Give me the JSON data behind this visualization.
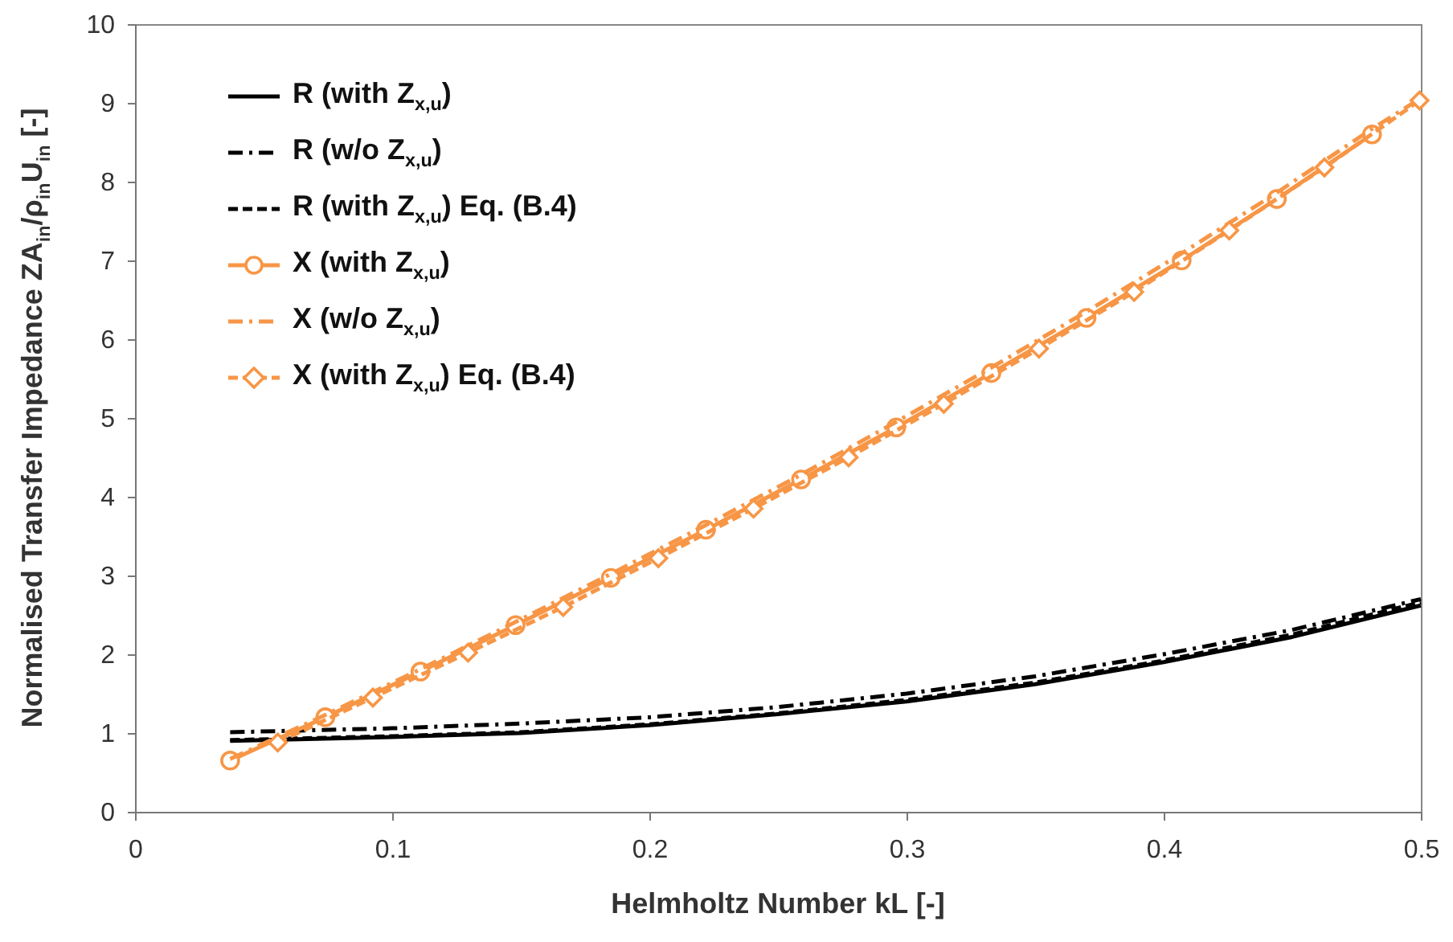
{
  "chart_data": {
    "type": "line",
    "xlabel": "Helmholtz Number kL [-]",
    "ylabel": "Normalised Transfer Impedance ZA$_{in}$/ρ$_{in}$U$_{in}$ [-]",
    "xlim": [
      0,
      0.5
    ],
    "xticks": [
      0,
      0.1,
      0.2,
      0.3,
      0.4,
      0.5
    ],
    "ylim": [
      0,
      10
    ],
    "yticks": [
      0,
      1,
      2,
      3,
      4,
      5,
      6,
      7,
      8,
      9,
      10
    ],
    "grid": false,
    "legend": "top left",
    "series": [
      {
        "name": "R (with Z$_{x,u}$)",
        "color": "#000000",
        "line_style": "solid",
        "marker": "none",
        "x": [
          0.037,
          0.1,
          0.15,
          0.2,
          0.25,
          0.3,
          0.35,
          0.4,
          0.45,
          0.5
        ],
        "values": [
          0.9,
          0.95,
          1.0,
          1.1,
          1.24,
          1.4,
          1.62,
          1.9,
          2.22,
          2.62
        ]
      },
      {
        "name": "R (w/o Z$_{x,u}$)",
        "color": "#000000",
        "line_style": "dashdot",
        "marker": "none",
        "x": [
          0.037,
          0.1,
          0.15,
          0.2,
          0.25,
          0.3,
          0.35,
          0.4,
          0.45,
          0.5
        ],
        "values": [
          1.01,
          1.06,
          1.12,
          1.2,
          1.33,
          1.5,
          1.72,
          2.0,
          2.31,
          2.7
        ]
      },
      {
        "name": "R (with Z$_{x,u}$) Eq. (B.4)",
        "color": "#000000",
        "line_style": "dashed",
        "marker": "none",
        "x": [
          0.037,
          0.1,
          0.15,
          0.2,
          0.25,
          0.3,
          0.35,
          0.4,
          0.45,
          0.5
        ],
        "values": [
          0.91,
          0.96,
          1.01,
          1.11,
          1.25,
          1.42,
          1.64,
          1.92,
          2.25,
          2.66
        ]
      },
      {
        "name": "X (with Z$_{x,u}$)",
        "color": "#f79646",
        "line_style": "solid",
        "marker": "circle",
        "x": [
          0.037,
          0.074,
          0.111,
          0.148,
          0.185,
          0.222,
          0.259,
          0.296,
          0.333,
          0.37,
          0.407,
          0.444,
          0.481
        ],
        "values": [
          0.65,
          1.2,
          1.78,
          2.37,
          2.97,
          3.58,
          4.22,
          4.88,
          5.57,
          6.27,
          7.0,
          7.78,
          8.6
        ]
      },
      {
        "name": "X (w/o Z$_{x,u}$)",
        "color": "#f79646",
        "line_style": "dashdot",
        "marker": "none",
        "x": [
          0.037,
          0.074,
          0.111,
          0.148,
          0.185,
          0.222,
          0.259,
          0.296,
          0.333,
          0.37,
          0.407,
          0.444,
          0.481,
          0.5
        ],
        "values": [
          0.67,
          1.23,
          1.81,
          2.41,
          3.02,
          3.64,
          4.28,
          4.95,
          5.64,
          6.35,
          7.09,
          7.86,
          8.67,
          9.06
        ]
      },
      {
        "name": "X (with Z$_{x,u}$) Eq. (B.4)",
        "color": "#f79646",
        "line_style": "dashed",
        "marker": "diamond",
        "x": [
          0.0555,
          0.0925,
          0.1295,
          0.1665,
          0.2035,
          0.2405,
          0.2775,
          0.3145,
          0.3515,
          0.3885,
          0.4255,
          0.4625,
          0.4995
        ],
        "values": [
          0.88,
          1.45,
          2.02,
          2.6,
          3.22,
          3.85,
          4.5,
          5.18,
          5.88,
          6.6,
          7.38,
          8.18,
          9.03
        ]
      }
    ]
  }
}
